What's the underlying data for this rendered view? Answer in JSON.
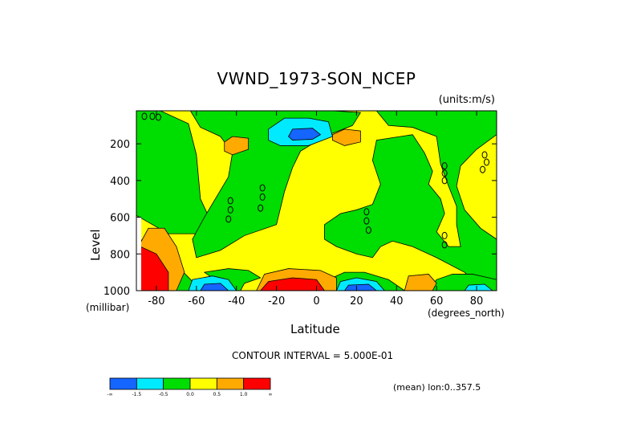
{
  "chart_data": {
    "type": "heatmap",
    "title": "VWND_1973-SON_NCEP",
    "units_label": "(units:m/s)",
    "ylabel": "Level",
    "yunits": "(millibar)",
    "xlabel": "Latitude",
    "xunits": "(degrees_north)",
    "xlim": [
      -90,
      90
    ],
    "ylim": [
      1000,
      20
    ],
    "x_ticks": [
      "-80",
      "-60",
      "-40",
      "-20",
      "0",
      "20",
      "40",
      "60",
      "80"
    ],
    "y_ticks": [
      "200",
      "400",
      "600",
      "800",
      "1000"
    ],
    "contour_interval_label": "CONTOUR INTERVAL = 5.000E-01",
    "mean_label": "(mean) lon:0..357.5",
    "colorbar": {
      "colors": [
        "#1565ff",
        "#00eaff",
        "#00dd00",
        "#ffff00",
        "#ffaa00",
        "#ff0000"
      ],
      "labels": [
        "-∞",
        "-1.5",
        "-0.5",
        "0.0",
        "0.5",
        "1.0",
        "∞"
      ]
    },
    "regions": [
      {
        "level": "low_-0.5",
        "color": "#00dd00",
        "desc": "green band left"
      },
      {
        "level": "low_-1.5",
        "color": "#00eaff",
        "desc": "upper jet"
      },
      {
        "level": "low_-inf",
        "color": "#1565ff",
        "desc": "upper jet core"
      }
    ]
  }
}
